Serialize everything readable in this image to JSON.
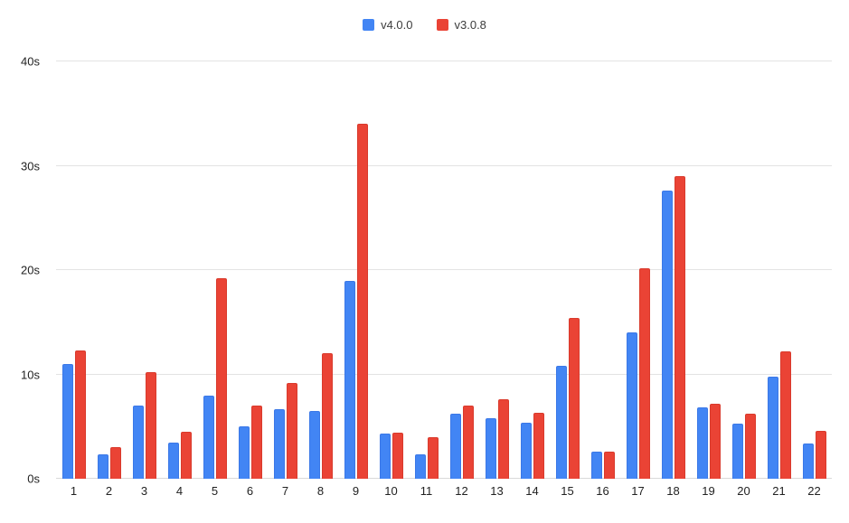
{
  "chart_data": {
    "type": "bar",
    "title": "",
    "xlabel": "",
    "ylabel": "",
    "ylim": [
      0,
      40
    ],
    "yticks": [
      0,
      10,
      20,
      30,
      40
    ],
    "ytick_labels": [
      "0s",
      "10s",
      "20s",
      "30s",
      "40s"
    ],
    "grid": true,
    "legend_position": "top-center",
    "categories": [
      "1",
      "2",
      "3",
      "4",
      "5",
      "6",
      "7",
      "8",
      "9",
      "10",
      "11",
      "12",
      "13",
      "14",
      "15",
      "16",
      "17",
      "18",
      "19",
      "20",
      "21",
      "22"
    ],
    "series": [
      {
        "name": "v4.0.0",
        "color": "#4285f4",
        "border_color": "#3b78e7",
        "values": [
          11,
          2.3,
          7,
          3.5,
          8,
          5,
          6.7,
          6.5,
          19,
          4.3,
          2.3,
          6.2,
          5.8,
          5.4,
          10.8,
          2.6,
          14,
          27.6,
          6.8,
          5.3,
          9.8,
          3.4
        ]
      },
      {
        "name": "v3.0.8",
        "color": "#ea4335",
        "border_color": "#d93a2c",
        "values": [
          12.3,
          3,
          10.2,
          4.5,
          19.2,
          7,
          9.2,
          12,
          34,
          4.4,
          4,
          7,
          7.6,
          6.3,
          15.4,
          2.6,
          20.2,
          29,
          7.2,
          6.2,
          12.2,
          4.6
        ]
      }
    ]
  }
}
